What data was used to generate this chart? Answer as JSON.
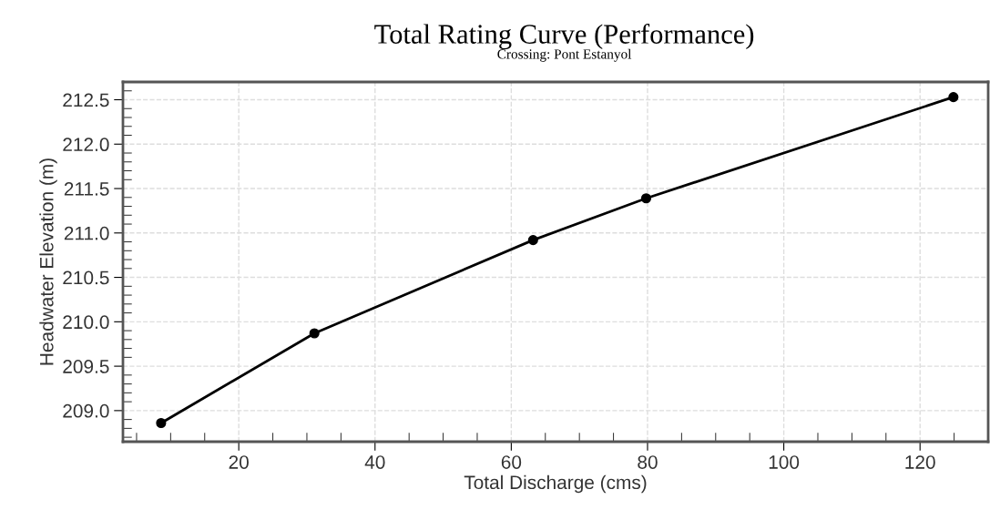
{
  "chart_data": {
    "type": "line",
    "title": "Total Rating Curve (Performance)",
    "subtitle": "Crossing: Pont Estanyol",
    "xlabel": "Total Discharge (cms)",
    "ylabel": "Headwater Elevation (m)",
    "x": [
      8.6,
      31.1,
      63.2,
      79.8,
      124.9
    ],
    "series": [
      {
        "color": "#000000",
        "values": [
          208.86,
          209.87,
          210.92,
          211.39,
          212.53
        ]
      }
    ],
    "xlim": [
      3,
      130
    ],
    "xticks": [
      20,
      40,
      60,
      80,
      100,
      120
    ],
    "ylim": [
      208.65,
      212.7
    ],
    "yticks": [
      {
        "value": 209,
        "label": "209.0"
      },
      209.5,
      {
        "value": 210,
        "label": "210.0"
      },
      210.5,
      {
        "value": 211,
        "label": "211.0"
      },
      211.5,
      {
        "value": 212,
        "label": "212.0"
      },
      212.5
    ],
    "grid": true,
    "marker": "circle",
    "line_style": "solid"
  }
}
